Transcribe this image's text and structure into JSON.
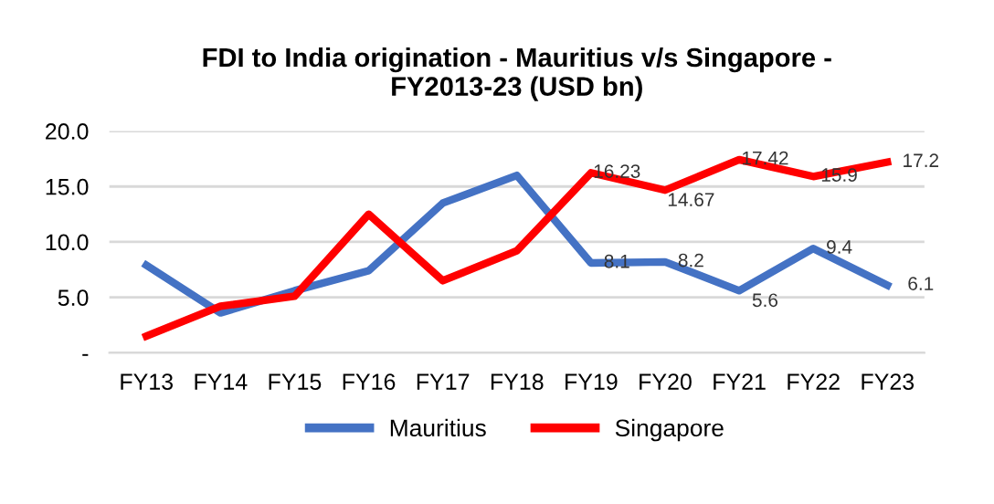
{
  "chart_data": {
    "type": "line",
    "title": "FDI to India origination - Mauritius v/s Singapore -\nFY2013-23 (USD bn)",
    "categories": [
      "FY13",
      "FY14",
      "FY15",
      "FY16",
      "FY17",
      "FY18",
      "FY19",
      "FY20",
      "FY21",
      "FY22",
      "FY23"
    ],
    "series": [
      {
        "name": "Mauritius",
        "color": "#4472c4",
        "values": [
          7.9,
          3.6,
          5.6,
          7.4,
          13.5,
          16.0,
          8.1,
          8.2,
          5.6,
          9.4,
          6.1
        ],
        "value_labels": [
          null,
          null,
          null,
          null,
          null,
          null,
          "8.1",
          "8.2",
          "5.6",
          "9.4",
          "6.1"
        ]
      },
      {
        "name": "Singapore",
        "color": "#ff0000",
        "values": [
          1.5,
          4.2,
          5.1,
          12.5,
          6.5,
          9.2,
          16.23,
          14.67,
          17.42,
          15.9,
          17.2
        ],
        "value_labels": [
          null,
          null,
          null,
          null,
          null,
          null,
          "16.23",
          "14.67",
          "17.42",
          "15.9",
          "17.2"
        ]
      }
    ],
    "ylim": [
      0,
      20
    ],
    "yticks": [
      {
        "value": 0,
        "label": "-"
      },
      {
        "value": 5,
        "label": "5.0"
      },
      {
        "value": 10,
        "label": "10.0"
      },
      {
        "value": 15,
        "label": "15.0"
      },
      {
        "value": 20,
        "label": "20.0"
      }
    ],
    "grid": "y",
    "legend": "bottom",
    "marker": "none",
    "line_style": "solid"
  }
}
